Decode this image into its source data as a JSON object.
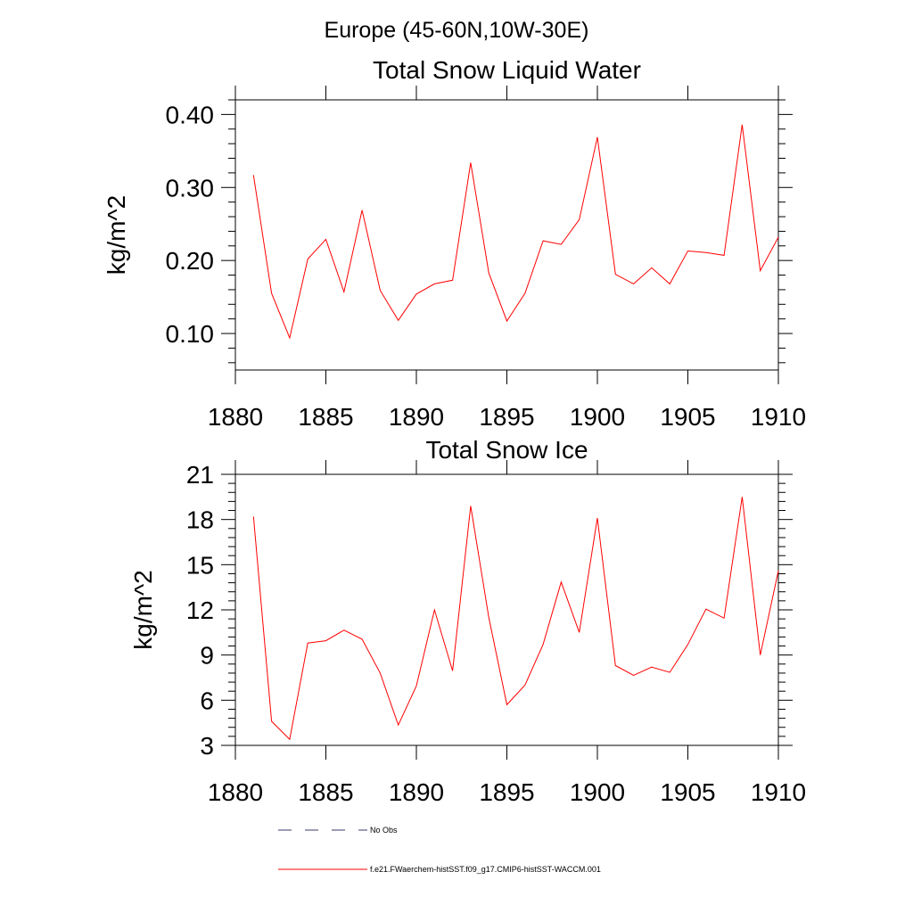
{
  "page_title": "Europe (45-60N,10W-30E)",
  "chart_data": [
    {
      "type": "line",
      "title": "Total Snow Liquid Water",
      "ylabel": "kg/m^2",
      "xlabel": "",
      "xlim": [
        1880,
        1910
      ],
      "ylim": [
        0.05,
        0.42
      ],
      "x_ticks": [
        1880,
        1885,
        1890,
        1895,
        1900,
        1905,
        1910
      ],
      "y_ticks": [
        0.1,
        0.2,
        0.3,
        0.4
      ],
      "x_tick_labels": [
        "1880",
        "1885",
        "1890",
        "1895",
        "1900",
        "1905",
        "1910"
      ],
      "y_tick_labels": [
        "0.10",
        "0.20",
        "0.30",
        "0.40"
      ],
      "grid": false,
      "x": [
        1881,
        1882,
        1883,
        1884,
        1885,
        1886,
        1887,
        1888,
        1889,
        1890,
        1891,
        1892,
        1893,
        1894,
        1895,
        1896,
        1897,
        1898,
        1899,
        1900,
        1901,
        1902,
        1903,
        1904,
        1905,
        1906,
        1907,
        1908,
        1909,
        1910
      ],
      "series": [
        {
          "color": "#ff0000",
          "values": [
            0.317,
            0.155,
            0.094,
            0.202,
            0.229,
            0.157,
            0.269,
            0.159,
            0.118,
            0.154,
            0.168,
            0.173,
            0.334,
            0.183,
            0.117,
            0.155,
            0.227,
            0.222,
            0.256,
            0.369,
            0.181,
            0.168,
            0.19,
            0.168,
            0.213,
            0.211,
            0.207,
            0.386,
            0.186,
            0.232
          ]
        }
      ]
    },
    {
      "type": "line",
      "title": "Total Snow Ice",
      "ylabel": "kg/m^2",
      "xlabel": "",
      "xlim": [
        1880,
        1910
      ],
      "ylim": [
        3,
        21
      ],
      "x_ticks": [
        1880,
        1885,
        1890,
        1895,
        1900,
        1905,
        1910
      ],
      "y_ticks": [
        3,
        6,
        9,
        12,
        15,
        18,
        21
      ],
      "x_tick_labels": [
        "1880",
        "1885",
        "1890",
        "1895",
        "1900",
        "1905",
        "1910"
      ],
      "y_tick_labels": [
        "3",
        "6",
        "9",
        "12",
        "15",
        "18",
        "21"
      ],
      "grid": false,
      "x": [
        1881,
        1882,
        1883,
        1884,
        1885,
        1886,
        1887,
        1888,
        1889,
        1890,
        1891,
        1892,
        1893,
        1894,
        1895,
        1896,
        1897,
        1898,
        1899,
        1900,
        1901,
        1902,
        1903,
        1904,
        1905,
        1906,
        1907,
        1908,
        1909,
        1910
      ],
      "series": [
        {
          "color": "#ff0000",
          "values": [
            18.2,
            4.6,
            3.4,
            9.8,
            9.95,
            10.65,
            10.05,
            7.8,
            4.35,
            6.95,
            12.0,
            7.95,
            18.9,
            11.5,
            5.7,
            7.0,
            9.7,
            13.85,
            10.5,
            18.1,
            8.3,
            7.65,
            8.2,
            7.85,
            9.7,
            12.05,
            11.45,
            19.5,
            9.0,
            14.6
          ]
        }
      ]
    }
  ],
  "legend": {
    "placement": "bottom",
    "entries": [
      {
        "label": "No Obs",
        "color": "#3b3b6b",
        "style": "dashed"
      },
      {
        "label": "f.e21.FWaerchem-histSST.f09_g17.CMIP6-histSST-WACCM.001",
        "color": "#ff0000",
        "style": "solid"
      }
    ]
  }
}
